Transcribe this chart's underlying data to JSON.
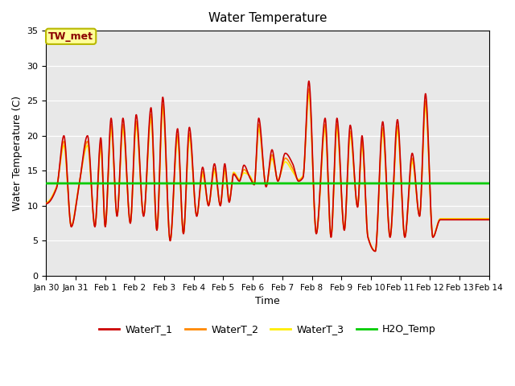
{
  "title": "Water Temperature",
  "xlabel": "Time",
  "ylabel": "Water Temperature (C)",
  "ylim": [
    0,
    35
  ],
  "xlim_days": [
    0,
    15
  ],
  "h2o_temp": 13.2,
  "plot_bg": "#e8e8e8",
  "fig_bg": "#ffffff",
  "annotation_text": "TW_met",
  "annotation_color": "#8b0000",
  "annotation_bg": "#ffff99",
  "annotation_border": "#b8b800",
  "series": {
    "WaterT_1": {
      "color": "#cc0000",
      "lw": 1.2
    },
    "WaterT_2": {
      "color": "#ff8800",
      "lw": 1.2
    },
    "WaterT_3": {
      "color": "#ffee00",
      "lw": 1.2
    },
    "H2O_Temp": {
      "color": "#00cc00",
      "lw": 2.0
    }
  },
  "xtick_labels": [
    "Jan 30",
    "Jan 31",
    "Feb 1",
    "Feb 2",
    "Feb 3",
    "Feb 4",
    "Feb 5",
    "Feb 6",
    "Feb 7",
    "Feb 8",
    "Feb 9",
    "Feb 10",
    "Feb 11",
    "Feb 12",
    "Feb 13",
    "Feb 14"
  ],
  "xtick_positions": [
    0,
    1,
    2,
    3,
    4,
    5,
    6,
    7,
    8,
    9,
    10,
    11,
    12,
    13,
    14,
    15
  ],
  "ytick_positions": [
    0,
    5,
    10,
    15,
    20,
    25,
    30,
    35
  ],
  "peaks_w1": [
    [
      0.0,
      10.3
    ],
    [
      0.35,
      12.5
    ],
    [
      0.6,
      20.0
    ],
    [
      0.85,
      7.0
    ],
    [
      1.1,
      12.5
    ],
    [
      1.4,
      20.0
    ],
    [
      1.65,
      7.0
    ],
    [
      1.85,
      19.7
    ],
    [
      2.0,
      7.0
    ],
    [
      2.2,
      22.5
    ],
    [
      2.4,
      8.5
    ],
    [
      2.6,
      22.5
    ],
    [
      2.85,
      7.5
    ],
    [
      3.05,
      23.0
    ],
    [
      3.3,
      8.5
    ],
    [
      3.55,
      24.0
    ],
    [
      3.75,
      6.5
    ],
    [
      3.95,
      25.5
    ],
    [
      4.2,
      5.0
    ],
    [
      4.45,
      21.0
    ],
    [
      4.65,
      6.0
    ],
    [
      4.85,
      21.2
    ],
    [
      5.1,
      8.5
    ],
    [
      5.3,
      15.5
    ],
    [
      5.5,
      10.0
    ],
    [
      5.7,
      16.0
    ],
    [
      5.9,
      10.0
    ],
    [
      6.05,
      16.0
    ],
    [
      6.2,
      10.5
    ],
    [
      6.35,
      14.5
    ],
    [
      6.55,
      13.5
    ],
    [
      6.7,
      15.8
    ],
    [
      6.9,
      14.0
    ],
    [
      7.05,
      13.0
    ],
    [
      7.2,
      22.5
    ],
    [
      7.45,
      12.7
    ],
    [
      7.65,
      18.0
    ],
    [
      7.85,
      13.5
    ],
    [
      8.1,
      17.5
    ],
    [
      8.35,
      16.0
    ],
    [
      8.55,
      13.5
    ],
    [
      8.7,
      14.0
    ],
    [
      8.9,
      27.8
    ],
    [
      9.15,
      6.0
    ],
    [
      9.45,
      22.5
    ],
    [
      9.65,
      5.5
    ],
    [
      9.85,
      22.5
    ],
    [
      10.1,
      6.5
    ],
    [
      10.3,
      21.5
    ],
    [
      10.55,
      9.8
    ],
    [
      10.7,
      20.0
    ],
    [
      10.9,
      5.5
    ],
    [
      11.15,
      3.5
    ],
    [
      11.4,
      22.0
    ],
    [
      11.65,
      5.5
    ],
    [
      11.9,
      22.3
    ],
    [
      12.15,
      5.5
    ],
    [
      12.4,
      17.5
    ],
    [
      12.65,
      8.5
    ],
    [
      12.85,
      26.0
    ],
    [
      13.1,
      5.5
    ],
    [
      13.35,
      8.0
    ],
    [
      14.0,
      8.0
    ]
  ]
}
